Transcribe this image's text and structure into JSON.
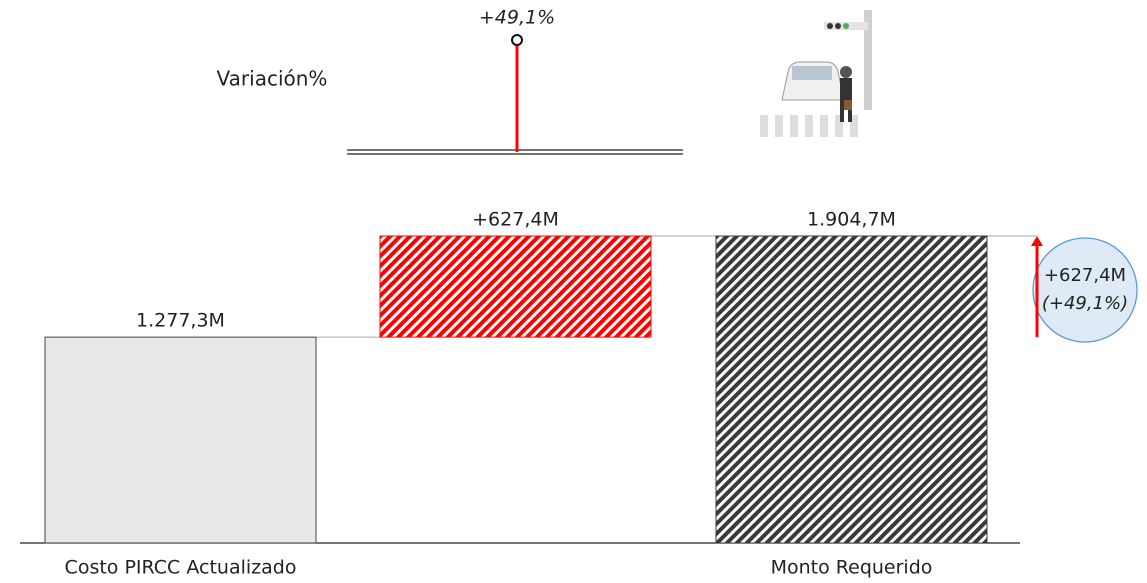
{
  "chart_data": {
    "type": "waterfall",
    "categories": [
      "Costo PIRCC Actualizado",
      null,
      "Monto Requerido"
    ],
    "values": [
      1277.3,
      627.4,
      1904.7
    ],
    "value_labels": [
      "1.277,3M",
      "+627,4M",
      "1.904,7M"
    ],
    "measure": [
      "absolute",
      "relative",
      "total"
    ],
    "colors": [
      "#e8e8e8",
      "#ff0000",
      "#3a3a3a"
    ],
    "hatch": [
      false,
      true,
      true
    ],
    "variation": {
      "label": "Variación%",
      "value": 49.1,
      "value_label": "+49,1%",
      "color": "#ff0000"
    },
    "annotations": [
      "+627,4M",
      "(+49,1%)"
    ]
  }
}
